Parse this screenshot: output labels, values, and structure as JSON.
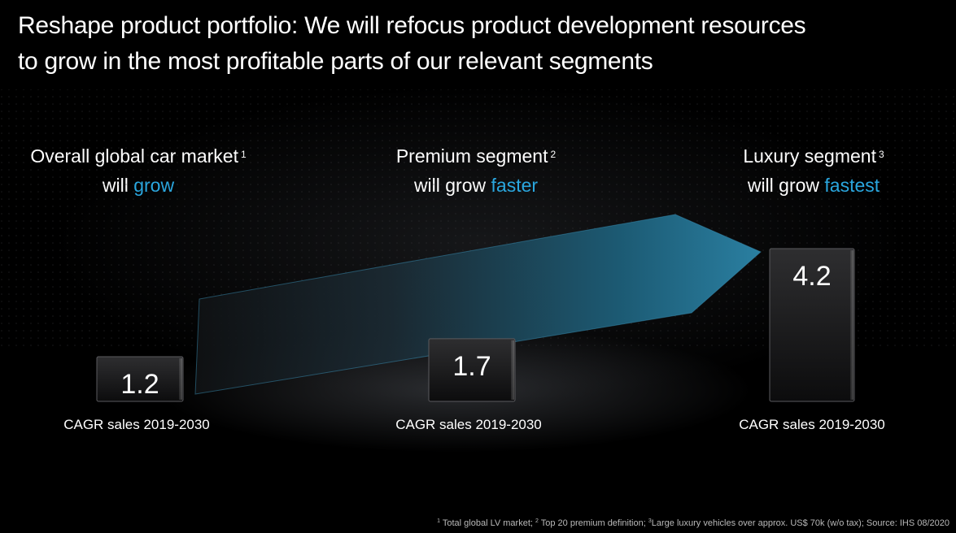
{
  "title_line1": "Reshape product portfolio: We will refocus product development resources",
  "title_line2": "to grow in the most profitable parts of our relevant segments",
  "segments": [
    {
      "heading": "Overall global car market",
      "sup": "1",
      "prefix": "will ",
      "accent": "grow"
    },
    {
      "heading": "Premium segment",
      "sup": "2",
      "prefix": "will grow ",
      "accent": "faster"
    },
    {
      "heading": "Luxury segment",
      "sup": "3",
      "prefix": "will grow ",
      "accent": "fastest"
    }
  ],
  "colors": {
    "accent": "#2aa7df",
    "arrow_teal": "#1e6f8c",
    "bar_top": "#2e2e30",
    "bar_bottom": "#0c0c0d"
  },
  "chart_data": {
    "type": "bar",
    "categories": [
      "CAGR sales 2019-2030",
      "CAGR sales 2019-2030",
      "CAGR sales 2019-2030"
    ],
    "values": [
      1.2,
      1.7,
      4.2
    ],
    "value_labels": [
      "1.2",
      "1.7",
      "4.2"
    ],
    "title": "",
    "xlabel": "",
    "ylabel": "",
    "grid": false,
    "legend": "none"
  },
  "footnote": {
    "n1": "1",
    "t1": " Total global LV market; ",
    "n2": "2",
    "t2": " Top 20 premium definition; ",
    "n3": "3",
    "t3": "Large luxury vehicles over approx. US$ 70k (w/o tax); Source: IHS 08/2020"
  }
}
